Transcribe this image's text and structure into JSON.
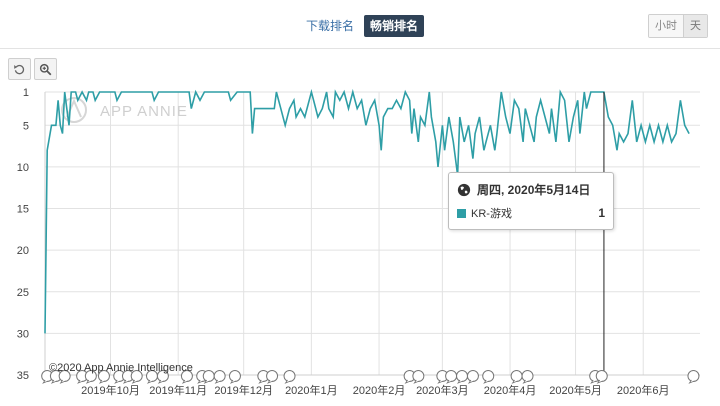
{
  "tabs": [
    {
      "label": "下载排名",
      "active": false
    },
    {
      "label": "畅销排名",
      "active": true
    }
  ],
  "granularity": [
    {
      "label": "小时",
      "selected": false
    },
    {
      "label": "天",
      "selected": true
    }
  ],
  "toolbar": {
    "reset_icon": "undo-icon",
    "zoom_icon": "zoom-in-icon"
  },
  "watermark": "APP ANNIE",
  "copyright": "©2020 App Annie Intelligence",
  "tooltip": {
    "date": "周四, 2020年5月14日",
    "series_name": "KR-游戏",
    "value": "1",
    "icon": "globe-icon"
  },
  "colors": {
    "line": "#2e9ea6",
    "tab_active": "#2f4257",
    "tab_link": "#3a6fa6"
  },
  "chart_data": {
    "type": "line",
    "y_inverted": true,
    "ylim": [
      1,
      35
    ],
    "yticks": [
      1,
      5,
      10,
      15,
      20,
      25,
      30,
      35
    ],
    "grid": true,
    "x_range": [
      "2019-09-01",
      "2020-06-27"
    ],
    "xticks": [
      {
        "label": "2019年10月",
        "date": "2019-10-01"
      },
      {
        "label": "2019年11月",
        "date": "2019-11-01"
      },
      {
        "label": "2019年12月",
        "date": "2019-12-01"
      },
      {
        "label": "2020年1月",
        "date": "2020-01-01"
      },
      {
        "label": "2020年2月",
        "date": "2020-02-01"
      },
      {
        "label": "2020年3月",
        "date": "2020-03-01"
      },
      {
        "label": "2020年4月",
        "date": "2020-04-01"
      },
      {
        "label": "2020年5月",
        "date": "2020-05-01"
      },
      {
        "label": "2020年6月",
        "date": "2020-06-01"
      }
    ],
    "crosshair_date": "2020-05-14",
    "series": [
      {
        "name": "KR-游戏",
        "color": "#2e9ea6",
        "points": [
          [
            "2019-09-01",
            30
          ],
          [
            "2019-09-02",
            8
          ],
          [
            "2019-09-04",
            5
          ],
          [
            "2019-09-06",
            5
          ],
          [
            "2019-09-07",
            2
          ],
          [
            "2019-09-08",
            5
          ],
          [
            "2019-09-09",
            6
          ],
          [
            "2019-09-10",
            1
          ],
          [
            "2019-09-11",
            3
          ],
          [
            "2019-09-12",
            5
          ],
          [
            "2019-09-13",
            1
          ],
          [
            "2019-09-15",
            1
          ],
          [
            "2019-09-16",
            2
          ],
          [
            "2019-09-18",
            1
          ],
          [
            "2019-09-20",
            2
          ],
          [
            "2019-09-21",
            1
          ],
          [
            "2019-09-23",
            1
          ],
          [
            "2019-09-24",
            2
          ],
          [
            "2019-09-26",
            1
          ],
          [
            "2019-10-03",
            1
          ],
          [
            "2019-10-04",
            2
          ],
          [
            "2019-10-06",
            1
          ],
          [
            "2019-10-20",
            1
          ],
          [
            "2019-10-21",
            2
          ],
          [
            "2019-10-23",
            1
          ],
          [
            "2019-11-06",
            1
          ],
          [
            "2019-11-07",
            3
          ],
          [
            "2019-11-09",
            1
          ],
          [
            "2019-11-11",
            2
          ],
          [
            "2019-11-13",
            1
          ],
          [
            "2019-11-24",
            1
          ],
          [
            "2019-11-25",
            2
          ],
          [
            "2019-11-28",
            1
          ],
          [
            "2019-12-04",
            1
          ],
          [
            "2019-12-05",
            6
          ],
          [
            "2019-12-06",
            3
          ],
          [
            "2019-12-15",
            3
          ],
          [
            "2019-12-16",
            1
          ],
          [
            "2019-12-18",
            3
          ],
          [
            "2019-12-20",
            5
          ],
          [
            "2019-12-22",
            3
          ],
          [
            "2019-12-24",
            2
          ],
          [
            "2019-12-25",
            4
          ],
          [
            "2019-12-27",
            3
          ],
          [
            "2019-12-29",
            4
          ],
          [
            "2019-12-31",
            2
          ],
          [
            "2020-01-01",
            1
          ],
          [
            "2020-01-02",
            2
          ],
          [
            "2020-01-04",
            4
          ],
          [
            "2020-01-06",
            3
          ],
          [
            "2020-01-08",
            1
          ],
          [
            "2020-01-09",
            3
          ],
          [
            "2020-01-11",
            4
          ],
          [
            "2020-01-12",
            1
          ],
          [
            "2020-01-14",
            2
          ],
          [
            "2020-01-16",
            1
          ],
          [
            "2020-01-18",
            3
          ],
          [
            "2020-01-20",
            1
          ],
          [
            "2020-01-22",
            3
          ],
          [
            "2020-01-24",
            2
          ],
          [
            "2020-01-26",
            5
          ],
          [
            "2020-01-28",
            3
          ],
          [
            "2020-01-30",
            2
          ],
          [
            "2020-02-01",
            5
          ],
          [
            "2020-02-02",
            8
          ],
          [
            "2020-02-03",
            4
          ],
          [
            "2020-02-05",
            3
          ],
          [
            "2020-02-07",
            3
          ],
          [
            "2020-02-09",
            2
          ],
          [
            "2020-02-11",
            3
          ],
          [
            "2020-02-13",
            1
          ],
          [
            "2020-02-15",
            2
          ],
          [
            "2020-02-16",
            6
          ],
          [
            "2020-02-17",
            3
          ],
          [
            "2020-02-19",
            7
          ],
          [
            "2020-02-20",
            4
          ],
          [
            "2020-02-22",
            5
          ],
          [
            "2020-02-24",
            1
          ],
          [
            "2020-02-25",
            4
          ],
          [
            "2020-02-27",
            7
          ],
          [
            "2020-02-28",
            10
          ],
          [
            "2020-03-01",
            5
          ],
          [
            "2020-03-02",
            8
          ],
          [
            "2020-03-04",
            4
          ],
          [
            "2020-03-06",
            7
          ],
          [
            "2020-03-08",
            11
          ],
          [
            "2020-03-09",
            4
          ],
          [
            "2020-03-11",
            7
          ],
          [
            "2020-03-13",
            5
          ],
          [
            "2020-03-15",
            9
          ],
          [
            "2020-03-16",
            6
          ],
          [
            "2020-03-18",
            4
          ],
          [
            "2020-03-20",
            8
          ],
          [
            "2020-03-21",
            7
          ],
          [
            "2020-03-23",
            5
          ],
          [
            "2020-03-25",
            8
          ],
          [
            "2020-03-26",
            6
          ],
          [
            "2020-03-28",
            1
          ],
          [
            "2020-03-30",
            4
          ],
          [
            "2020-04-01",
            6
          ],
          [
            "2020-04-03",
            2
          ],
          [
            "2020-04-05",
            3
          ],
          [
            "2020-04-07",
            7
          ],
          [
            "2020-04-08",
            3
          ],
          [
            "2020-04-10",
            5
          ],
          [
            "2020-04-12",
            7
          ],
          [
            "2020-04-13",
            4
          ],
          [
            "2020-04-15",
            2
          ],
          [
            "2020-04-17",
            4
          ],
          [
            "2020-04-19",
            6
          ],
          [
            "2020-04-20",
            3
          ],
          [
            "2020-04-22",
            7
          ],
          [
            "2020-04-24",
            1
          ],
          [
            "2020-04-26",
            2
          ],
          [
            "2020-04-28",
            7
          ],
          [
            "2020-04-30",
            4
          ],
          [
            "2020-05-02",
            2
          ],
          [
            "2020-05-03",
            6
          ],
          [
            "2020-05-05",
            1
          ],
          [
            "2020-05-06",
            3
          ],
          [
            "2020-05-08",
            1
          ],
          [
            "2020-05-10",
            1
          ],
          [
            "2020-05-12",
            1
          ],
          [
            "2020-05-14",
            1
          ],
          [
            "2020-05-16",
            4
          ],
          [
            "2020-05-18",
            5
          ],
          [
            "2020-05-20",
            8
          ],
          [
            "2020-05-21",
            6
          ],
          [
            "2020-05-23",
            7
          ],
          [
            "2020-05-25",
            6
          ],
          [
            "2020-05-27",
            2
          ],
          [
            "2020-05-29",
            7
          ],
          [
            "2020-05-31",
            5
          ],
          [
            "2020-06-02",
            7
          ],
          [
            "2020-06-04",
            5
          ],
          [
            "2020-06-06",
            7
          ],
          [
            "2020-06-08",
            5
          ],
          [
            "2020-06-10",
            7
          ],
          [
            "2020-06-12",
            5
          ],
          [
            "2020-06-14",
            7
          ],
          [
            "2020-06-16",
            6
          ],
          [
            "2020-06-18",
            2
          ],
          [
            "2020-06-20",
            5
          ],
          [
            "2020-06-22",
            6
          ]
        ]
      }
    ],
    "event_marker_dates": [
      "2019-09-02",
      "2019-09-06",
      "2019-09-10",
      "2019-09-18",
      "2019-09-22",
      "2019-09-28",
      "2019-10-05",
      "2019-10-09",
      "2019-10-13",
      "2019-10-20",
      "2019-10-25",
      "2019-11-05",
      "2019-11-12",
      "2019-11-15",
      "2019-11-20",
      "2019-11-27",
      "2019-12-10",
      "2019-12-14",
      "2019-12-22",
      "2020-02-15",
      "2020-02-19",
      "2020-03-01",
      "2020-03-05",
      "2020-03-10",
      "2020-03-15",
      "2020-03-22",
      "2020-04-04",
      "2020-04-09",
      "2020-05-10",
      "2020-05-13",
      "2020-06-24"
    ]
  }
}
